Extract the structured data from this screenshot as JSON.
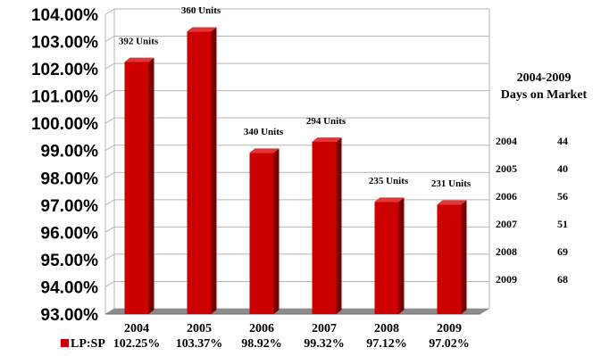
{
  "chart_data": {
    "type": "bar",
    "title": "",
    "xlabel": "",
    "ylabel": "",
    "ylim": [
      93,
      104
    ],
    "ytick_step": 1,
    "ytick_format": "percent_2dp",
    "grid": true,
    "legend": "bottom-left",
    "categories": [
      "2004",
      "2005",
      "2006",
      "2007",
      "2008",
      "2009"
    ],
    "category_value_labels": [
      "102.25%",
      "103.37%",
      "98.92%",
      "99.32%",
      "97.12%",
      "97.02%"
    ],
    "series": [
      {
        "name": "LP:SP",
        "values": [
          102.25,
          103.37,
          98.92,
          99.32,
          97.12,
          97.02
        ],
        "color": "#cc0000"
      }
    ],
    "annotations": [
      "392 Units",
      "360 Units",
      "340 Units",
      "294 Units",
      "235 Units",
      "231 Units"
    ]
  },
  "side_table": {
    "title_line1": "2004-2009",
    "title_line2": "Days on Market",
    "rows": [
      {
        "year": "2004",
        "days": "44"
      },
      {
        "year": "2005",
        "days": "40"
      },
      {
        "year": "2006",
        "days": "56"
      },
      {
        "year": "2007",
        "days": "51"
      },
      {
        "year": "2008",
        "days": "69"
      },
      {
        "year": "2009",
        "days": "68"
      }
    ]
  },
  "colors": {
    "bar_front": "#cc0000",
    "bar_side": "#7a0000",
    "bar_top": "#e63333",
    "floor": "#8c8c8c",
    "grid": "#b5b5b5",
    "wall": "#ffffff"
  }
}
